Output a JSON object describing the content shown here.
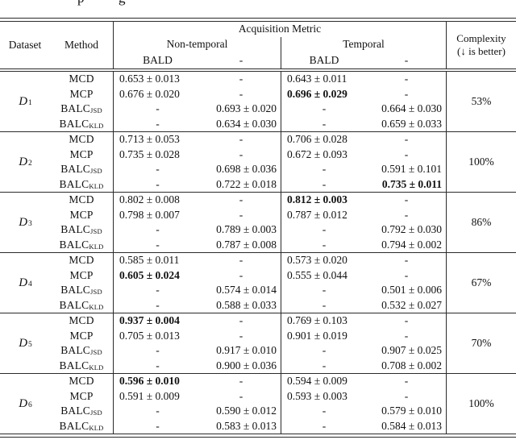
{
  "page": {
    "cropped_caption_fragments": [
      "p",
      "g"
    ]
  },
  "colors": {
    "background": "#ffffff",
    "text": "#111111",
    "rule": "#2a2a2a"
  },
  "table": {
    "header": {
      "dataset": "Dataset",
      "method": "Method",
      "acquisition_metric": "Acquisition Metric",
      "non_temporal": "Non-temporal",
      "temporal": "Temporal",
      "bald": "BALD",
      "dash": "-",
      "complexity_title": "Complexity",
      "complexity_note": "(↓ is better)"
    },
    "groups": [
      {
        "dataset": "D",
        "dataset_sub": "1",
        "complexity": "53%",
        "rows": [
          {
            "method": "MCD",
            "method_sub": "",
            "cells": [
              {
                "t": "0.653 ± 0.013",
                "b": false
              },
              {
                "t": "-",
                "b": false
              },
              {
                "t": "0.643 ± 0.011",
                "b": false
              },
              {
                "t": "-",
                "b": false
              }
            ]
          },
          {
            "method": "MCP",
            "method_sub": "",
            "cells": [
              {
                "t": "0.676 ± 0.020",
                "b": false
              },
              {
                "t": "-",
                "b": false
              },
              {
                "t": "0.696 ± 0.029",
                "b": true
              },
              {
                "t": "-",
                "b": false
              }
            ]
          },
          {
            "method": "BALC",
            "method_sub": "JSD",
            "cells": [
              {
                "t": "-",
                "b": false
              },
              {
                "t": "0.693 ± 0.020",
                "b": false
              },
              {
                "t": "-",
                "b": false
              },
              {
                "t": "0.664 ± 0.030",
                "b": false
              }
            ]
          },
          {
            "method": "BALC",
            "method_sub": "KLD",
            "cells": [
              {
                "t": "-",
                "b": false
              },
              {
                "t": "0.634 ± 0.030",
                "b": false
              },
              {
                "t": "-",
                "b": false
              },
              {
                "t": "0.659 ± 0.033",
                "b": false
              }
            ]
          }
        ]
      },
      {
        "dataset": "D",
        "dataset_sub": "2",
        "complexity": "100%",
        "rows": [
          {
            "method": "MCD",
            "method_sub": "",
            "cells": [
              {
                "t": "0.713 ± 0.053",
                "b": false
              },
              {
                "t": "-",
                "b": false
              },
              {
                "t": "0.706 ± 0.028",
                "b": false
              },
              {
                "t": "-",
                "b": false
              }
            ]
          },
          {
            "method": "MCP",
            "method_sub": "",
            "cells": [
              {
                "t": "0.735 ± 0.028",
                "b": false
              },
              {
                "t": "-",
                "b": false
              },
              {
                "t": "0.672 ± 0.093",
                "b": false
              },
              {
                "t": "-",
                "b": false
              }
            ]
          },
          {
            "method": "BALC",
            "method_sub": "JSD",
            "cells": [
              {
                "t": "-",
                "b": false
              },
              {
                "t": "0.698 ± 0.036",
                "b": false
              },
              {
                "t": "-",
                "b": false
              },
              {
                "t": "0.591 ± 0.101",
                "b": false
              }
            ]
          },
          {
            "method": "BALC",
            "method_sub": "KLD",
            "cells": [
              {
                "t": "-",
                "b": false
              },
              {
                "t": "0.722 ± 0.018",
                "b": false
              },
              {
                "t": "-",
                "b": false
              },
              {
                "t": "0.735 ± 0.011",
                "b": true
              }
            ]
          }
        ]
      },
      {
        "dataset": "D",
        "dataset_sub": "3",
        "complexity": "86%",
        "rows": [
          {
            "method": "MCD",
            "method_sub": "",
            "cells": [
              {
                "t": "0.802 ± 0.008",
                "b": false
              },
              {
                "t": "-",
                "b": false
              },
              {
                "t": "0.812 ± 0.003",
                "b": true
              },
              {
                "t": "-",
                "b": false
              }
            ]
          },
          {
            "method": "MCP",
            "method_sub": "",
            "cells": [
              {
                "t": "0.798 ± 0.007",
                "b": false
              },
              {
                "t": "-",
                "b": false
              },
              {
                "t": "0.787 ± 0.012",
                "b": false
              },
              {
                "t": "-",
                "b": false
              }
            ]
          },
          {
            "method": "BALC",
            "method_sub": "JSD",
            "cells": [
              {
                "t": "-",
                "b": false
              },
              {
                "t": "0.789 ± 0.003",
                "b": false
              },
              {
                "t": "-",
                "b": false
              },
              {
                "t": "0.792 ± 0.030",
                "b": false
              }
            ]
          },
          {
            "method": "BALC",
            "method_sub": "KLD",
            "cells": [
              {
                "t": "-",
                "b": false
              },
              {
                "t": "0.787 ± 0.008",
                "b": false
              },
              {
                "t": "-",
                "b": false
              },
              {
                "t": "0.794 ± 0.002",
                "b": false
              }
            ]
          }
        ]
      },
      {
        "dataset": "D",
        "dataset_sub": "4",
        "complexity": "67%",
        "rows": [
          {
            "method": "MCD",
            "method_sub": "",
            "cells": [
              {
                "t": "0.585 ± 0.011",
                "b": false
              },
              {
                "t": "-",
                "b": false
              },
              {
                "t": "0.573 ± 0.020",
                "b": false
              },
              {
                "t": "-",
                "b": false
              }
            ]
          },
          {
            "method": "MCP",
            "method_sub": "",
            "cells": [
              {
                "t": "0.605 ± 0.024",
                "b": true
              },
              {
                "t": "-",
                "b": false
              },
              {
                "t": "0.555 ± 0.044",
                "b": false
              },
              {
                "t": "-",
                "b": false
              }
            ]
          },
          {
            "method": "BALC",
            "method_sub": "JSD",
            "cells": [
              {
                "t": "-",
                "b": false
              },
              {
                "t": "0.574 ± 0.014",
                "b": false
              },
              {
                "t": "-",
                "b": false
              },
              {
                "t": "0.501 ± 0.006",
                "b": false
              }
            ]
          },
          {
            "method": "BALC",
            "method_sub": "KLD",
            "cells": [
              {
                "t": "-",
                "b": false
              },
              {
                "t": "0.588 ± 0.033",
                "b": false
              },
              {
                "t": "-",
                "b": false
              },
              {
                "t": "0.532 ± 0.027",
                "b": false
              }
            ]
          }
        ]
      },
      {
        "dataset": "D",
        "dataset_sub": "5",
        "complexity": "70%",
        "rows": [
          {
            "method": "MCD",
            "method_sub": "",
            "cells": [
              {
                "t": "0.937 ± 0.004",
                "b": true
              },
              {
                "t": "-",
                "b": false
              },
              {
                "t": "0.769 ± 0.103",
                "b": false
              },
              {
                "t": "-",
                "b": false
              }
            ]
          },
          {
            "method": "MCP",
            "method_sub": "",
            "cells": [
              {
                "t": "0.705 ± 0.013",
                "b": false
              },
              {
                "t": "-",
                "b": false
              },
              {
                "t": "0.901 ± 0.019",
                "b": false
              },
              {
                "t": "-",
                "b": false
              }
            ]
          },
          {
            "method": "BALC",
            "method_sub": "JSD",
            "cells": [
              {
                "t": "-",
                "b": false
              },
              {
                "t": "0.917 ± 0.010",
                "b": false
              },
              {
                "t": "-",
                "b": false
              },
              {
                "t": "0.907 ± 0.025",
                "b": false
              }
            ]
          },
          {
            "method": "BALC",
            "method_sub": "KLD",
            "cells": [
              {
                "t": "-",
                "b": false
              },
              {
                "t": "0.900 ± 0.036",
                "b": false
              },
              {
                "t": "-",
                "b": false
              },
              {
                "t": "0.708 ± 0.002",
                "b": false
              }
            ]
          }
        ]
      },
      {
        "dataset": "D",
        "dataset_sub": "6",
        "complexity": "100%",
        "rows": [
          {
            "method": "MCD",
            "method_sub": "",
            "cells": [
              {
                "t": "0.596 ± 0.010",
                "b": true
              },
              {
                "t": "-",
                "b": false
              },
              {
                "t": "0.594 ± 0.009",
                "b": false
              },
              {
                "t": "-",
                "b": false
              }
            ]
          },
          {
            "method": "MCP",
            "method_sub": "",
            "cells": [
              {
                "t": "0.591 ± 0.009",
                "b": false
              },
              {
                "t": "-",
                "b": false
              },
              {
                "t": "0.593 ± 0.003",
                "b": false
              },
              {
                "t": "-",
                "b": false
              }
            ]
          },
          {
            "method": "BALC",
            "method_sub": "JSD",
            "cells": [
              {
                "t": "-",
                "b": false
              },
              {
                "t": "0.590 ± 0.012",
                "b": false
              },
              {
                "t": "-",
                "b": false
              },
              {
                "t": "0.579 ± 0.010",
                "b": false
              }
            ]
          },
          {
            "method": "BALC",
            "method_sub": "KLD",
            "cells": [
              {
                "t": "-",
                "b": false
              },
              {
                "t": "0.583 ± 0.013",
                "b": false
              },
              {
                "t": "-",
                "b": false
              },
              {
                "t": "0.584 ± 0.013",
                "b": false
              }
            ]
          }
        ]
      }
    ]
  }
}
